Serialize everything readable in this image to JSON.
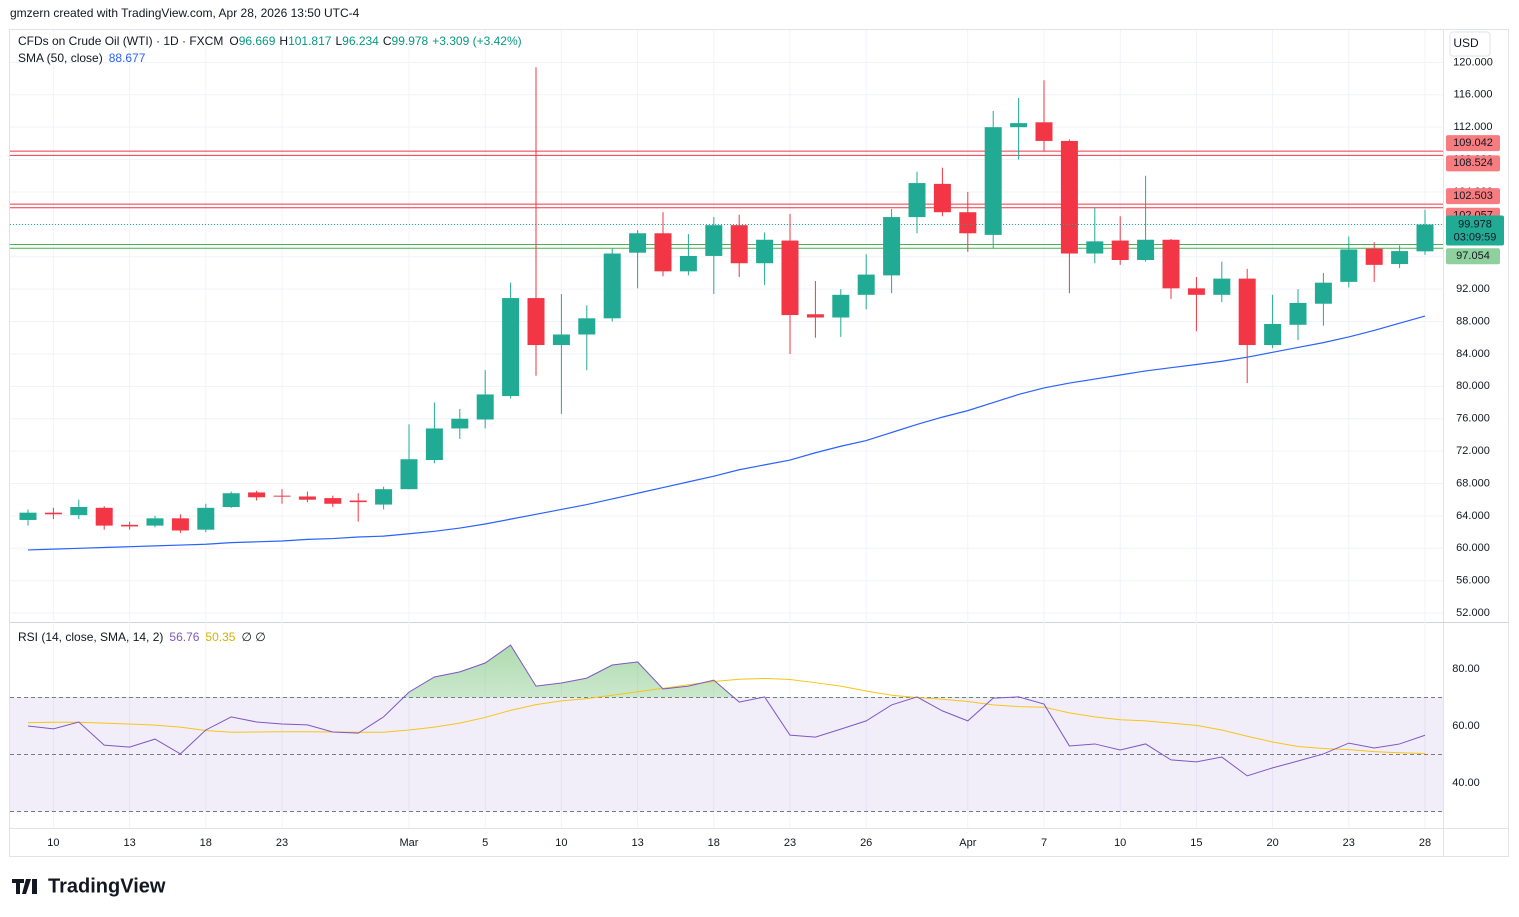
{
  "header": {
    "attribution": "gmzern created with TradingView.com, Apr 28, 2026 13:50 UTC-4",
    "symbol": "CFDs on Crude Oil (WTI) · 1D · FXCM",
    "o": "O",
    "h": "H",
    "l": "L",
    "c": "C",
    "change": "+3.309 (+3.42%)",
    "currency": "USD",
    "countdown": "03:09:59",
    "logo": "TradingView"
  },
  "chart_data": {
    "type": "candlestick",
    "categories": [
      null,
      "10",
      null,
      null,
      "13",
      null,
      null,
      "18",
      null,
      null,
      "23",
      null,
      null,
      null,
      null,
      "Mar",
      null,
      null,
      "5",
      null,
      null,
      "10",
      null,
      null,
      "13",
      null,
      null,
      "18",
      null,
      null,
      "23",
      null,
      null,
      "26",
      null,
      null,
      null,
      "Apr",
      null,
      null,
      "7",
      null,
      null,
      "10",
      null,
      null,
      "15",
      null,
      null,
      "20",
      null,
      null,
      "23",
      null,
      null,
      "28"
    ],
    "open": [
      63.5,
      64.4,
      64.1,
      65.0,
      62.9,
      62.8,
      63.7,
      62.3,
      65.1,
      66.9,
      66.5,
      66.4,
      66.2,
      65.9,
      65.4,
      67.3,
      70.9,
      74.8,
      75.9,
      78.8,
      90.9,
      85.1,
      86.4,
      88.4,
      96.5,
      98.9,
      94.2,
      96.1,
      99.9,
      95.2,
      98.0,
      88.9,
      88.5,
      91.3,
      93.7,
      100.9,
      105.0,
      101.5,
      98.7,
      112.0,
      112.6,
      110.3,
      96.4,
      98.0,
      95.6,
      98.1,
      92.1,
      91.3,
      93.3,
      85.1,
      87.6,
      90.2,
      92.9,
      97.0,
      95.1,
      96.669
    ],
    "high": [
      64.8,
      65.0,
      66.0,
      65.2,
      63.3,
      64.0,
      64.2,
      65.5,
      67.0,
      67.1,
      67.3,
      67.0,
      66.5,
      66.8,
      67.6,
      75.3,
      78.0,
      77.2,
      82.0,
      92.8,
      119.4,
      91.4,
      90.0,
      97.0,
      99.3,
      101.5,
      98.8,
      100.9,
      101.2,
      99.0,
      101.3,
      93.0,
      92.0,
      96.3,
      101.9,
      106.5,
      107.0,
      104.0,
      114.0,
      115.6,
      117.8,
      110.5,
      102.0,
      101.0,
      106.0,
      98.2,
      93.5,
      95.4,
      94.5,
      91.3,
      92.0,
      94.0,
      98.5,
      97.8,
      97.4,
      101.817
    ],
    "low": [
      62.8,
      63.6,
      63.6,
      62.3,
      62.3,
      62.6,
      61.9,
      62.0,
      65.0,
      65.9,
      65.5,
      65.7,
      65.1,
      63.3,
      64.8,
      67.3,
      70.5,
      73.5,
      74.8,
      78.5,
      81.3,
      76.6,
      82.0,
      88.0,
      92.1,
      93.6,
      93.7,
      91.4,
      93.5,
      92.5,
      84.0,
      86.0,
      86.1,
      89.5,
      91.5,
      98.9,
      101.0,
      96.6,
      97.0,
      108.0,
      109.0,
      91.5,
      95.2,
      95.0,
      95.4,
      90.8,
      86.8,
      90.4,
      80.4,
      84.7,
      85.7,
      87.5,
      92.2,
      92.9,
      94.6,
      96.234
    ],
    "close": [
      64.4,
      64.2,
      65.1,
      62.8,
      62.7,
      63.7,
      62.2,
      65.0,
      66.8,
      66.3,
      66.4,
      66.0,
      65.5,
      65.7,
      67.3,
      71.0,
      74.8,
      76.0,
      79.0,
      90.9,
      85.1,
      86.4,
      88.4,
      96.4,
      98.9,
      94.2,
      96.1,
      99.9,
      95.2,
      98.1,
      88.8,
      88.5,
      91.3,
      93.8,
      100.9,
      105.1,
      101.5,
      98.9,
      112.0,
      112.5,
      110.3,
      96.4,
      97.9,
      95.6,
      98.1,
      92.1,
      91.3,
      93.3,
      85.1,
      87.7,
      90.3,
      92.8,
      96.9,
      95.0,
      96.7,
      99.978
    ],
    "up_color": "#22ab94",
    "down_color": "#f23645",
    "ylim": [
      50.9,
      124.0
    ],
    "yticks": [
      {
        "value": 52,
        "label": "52.000"
      },
      {
        "value": 56,
        "label": "56.000"
      },
      {
        "value": 60,
        "label": "60.000"
      },
      {
        "value": 64,
        "label": "64.000"
      },
      {
        "value": 68,
        "label": "68.000"
      },
      {
        "value": 72,
        "label": "72.000"
      },
      {
        "value": 76,
        "label": "76.000"
      },
      {
        "value": 80,
        "label": "80.000"
      },
      {
        "value": 84,
        "label": "84.000"
      },
      {
        "value": 88,
        "label": "88.000"
      },
      {
        "value": 92,
        "label": "92.000"
      },
      {
        "value": 96,
        "label": "96.000"
      },
      {
        "value": 100,
        "label": "100.000"
      },
      {
        "value": 104,
        "label": "104.000"
      },
      {
        "value": 108,
        "label": "108.000"
      },
      {
        "value": 112,
        "label": "112.000"
      },
      {
        "value": 116,
        "label": "116.000"
      },
      {
        "value": 120,
        "label": "120.000"
      }
    ],
    "grid": true,
    "sma": {
      "name": "SMA (50, close)",
      "color": "#2962ff",
      "values": [
        59.8,
        59.9,
        60.0,
        60.1,
        60.2,
        60.3,
        60.4,
        60.5,
        60.7,
        60.8,
        60.9,
        61.1,
        61.2,
        61.4,
        61.5,
        61.8,
        62.1,
        62.5,
        63.0,
        63.6,
        64.2,
        64.8,
        65.4,
        66.1,
        66.8,
        67.5,
        68.2,
        68.9,
        69.7,
        70.3,
        70.9,
        71.8,
        72.6,
        73.3,
        74.3,
        75.3,
        76.2,
        77.0,
        78.0,
        79.0,
        79.8,
        80.4,
        80.9,
        81.4,
        81.9,
        82.3,
        82.7,
        83.1,
        83.6,
        84.2,
        84.8,
        85.4,
        86.1,
        86.9,
        87.8,
        88.677
      ]
    },
    "hlines": [
      {
        "color": "#f23645",
        "values": [
          109.042,
          108.524
        ]
      },
      {
        "color": "#f23645",
        "values": [
          102.503,
          102.057
        ]
      },
      {
        "color": "#4caf50",
        "values": [
          97.509,
          97.054
        ]
      }
    ],
    "rsi": {
      "name": "RSI (14, close, SMA, 14, 2)",
      "color": "#7e57c2",
      "sma_color": "#f5c518",
      "extra": "∅ ∅",
      "values": [
        60.0,
        59.0,
        61.4,
        53.3,
        52.6,
        55.4,
        50.2,
        58.6,
        63.2,
        61.4,
        60.7,
        60.4,
        57.9,
        57.5,
        63.2,
        71.9,
        77.2,
        79.0,
        82.1,
        88.4,
        74.0,
        75.1,
        76.8,
        81.4,
        82.5,
        73.0,
        74.0,
        76.1,
        68.4,
        70.2,
        56.8,
        56.1,
        58.9,
        61.8,
        67.4,
        70.2,
        65.3,
        61.8,
        69.8,
        70.2,
        67.7,
        53.0,
        53.7,
        51.6,
        53.7,
        48.1,
        47.4,
        49.1,
        42.5,
        45.3,
        47.7,
        50.2,
        54.0,
        52.3,
        53.7,
        56.76
      ],
      "sma_values": [
        61.2,
        61.3,
        61.3,
        61.0,
        60.7,
        60.3,
        59.6,
        58.4,
        57.8,
        57.9,
        58.0,
        58.0,
        57.9,
        57.8,
        57.8,
        58.6,
        59.6,
        61.0,
        63.0,
        65.5,
        67.5,
        68.8,
        69.6,
        70.8,
        72.0,
        73.2,
        74.5,
        75.6,
        76.4,
        76.7,
        76.3,
        75.2,
        74.0,
        72.3,
        70.8,
        70.0,
        69.4,
        68.6,
        67.4,
        66.8,
        66.6,
        64.6,
        63.2,
        62.2,
        61.8,
        61.0,
        60.2,
        58.6,
        56.4,
        54.4,
        52.8,
        52.1,
        51.7,
        51.0,
        50.6,
        50.35
      ],
      "ylim": [
        24.2,
        96.5
      ],
      "yticks": [
        {
          "value": 40,
          "label": "40.00"
        },
        {
          "value": 60,
          "label": "60.00"
        },
        {
          "value": 80,
          "label": "80.00"
        }
      ],
      "levels": [
        70,
        50,
        30
      ]
    }
  }
}
